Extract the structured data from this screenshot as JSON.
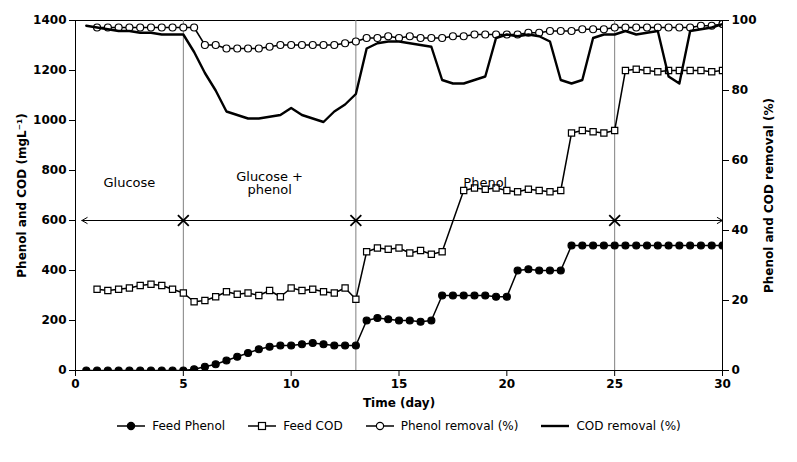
{
  "chart_data": {
    "type": "line",
    "xlabel": "Time (day)",
    "ylabel": "Phenol and COD (mgL⁻¹)",
    "y2label": "Phenol and COD removal (%)",
    "xlim": [
      0,
      30
    ],
    "ylim": [
      0,
      1400
    ],
    "y2lim": [
      0,
      100
    ],
    "xticks": [
      0,
      5,
      10,
      15,
      20,
      25,
      30
    ],
    "yticks": [
      0,
      200,
      400,
      600,
      800,
      1000,
      1200,
      1400
    ],
    "y2ticks": [
      0,
      20,
      40,
      60,
      80,
      100
    ],
    "grid": false,
    "legend": "bottom",
    "vlines": [
      5,
      13,
      25
    ],
    "arrow": {
      "y": 600,
      "from": 0.3,
      "to": 30
    },
    "annotations": [
      {
        "text": "Glucose",
        "x": 2.5,
        "y": 750
      },
      {
        "text": "Glucose +\nphenol",
        "x": 9,
        "y": 750
      },
      {
        "text": "Phenol",
        "x": 19,
        "y": 750
      }
    ],
    "series": [
      {
        "name": "Feed Phenol",
        "color": "#000000",
        "marker": "circle_filled",
        "x": [
          0.5,
          1,
          1.5,
          2,
          2.5,
          3,
          3.5,
          4,
          4.5,
          5,
          5.5,
          6,
          6.5,
          7,
          7.5,
          8,
          8.5,
          9,
          9.5,
          10,
          10.5,
          11,
          11.5,
          12,
          12.5,
          13,
          13.5,
          14,
          14.5,
          15,
          15.5,
          16,
          16.5,
          17,
          17.5,
          18,
          18.5,
          19,
          19.5,
          20,
          20.5,
          21,
          21.5,
          22,
          22.5,
          23,
          23.5,
          24,
          24.5,
          25,
          25.5,
          26,
          26.5,
          27,
          27.5,
          28,
          28.5,
          29,
          29.5,
          30
        ],
        "values": [
          0,
          0,
          0,
          0,
          0,
          0,
          0,
          0,
          0,
          0,
          5,
          15,
          25,
          40,
          55,
          70,
          85,
          95,
          100,
          100,
          105,
          110,
          105,
          100,
          100,
          100,
          200,
          210,
          205,
          200,
          200,
          195,
          200,
          300,
          300,
          300,
          300,
          300,
          295,
          295,
          400,
          405,
          400,
          400,
          400,
          500,
          500,
          500,
          500,
          500,
          500,
          500,
          500,
          500,
          500,
          500,
          500,
          500,
          500,
          500
        ]
      },
      {
        "name": "Feed COD",
        "color": "#000000",
        "marker": "square_open",
        "x": [
          1,
          1.5,
          2,
          2.5,
          3,
          3.5,
          4,
          4.5,
          5,
          5.5,
          6,
          6.5,
          7,
          7.5,
          8,
          8.5,
          9,
          9.5,
          10,
          10.5,
          11,
          11.5,
          12,
          12.5,
          13,
          13.5,
          14,
          14.5,
          15,
          15.5,
          16,
          16.5,
          17,
          18,
          18.5,
          19,
          19.5,
          20,
          20.5,
          21,
          21.5,
          22,
          22.5,
          23,
          23.5,
          24,
          24.5,
          25,
          25.5,
          26,
          26.5,
          27,
          27.5,
          28,
          28.5,
          29,
          29.5,
          30
        ],
        "values": [
          325,
          320,
          325,
          330,
          340,
          345,
          340,
          325,
          310,
          275,
          280,
          295,
          315,
          305,
          310,
          300,
          320,
          295,
          330,
          320,
          325,
          315,
          310,
          330,
          285,
          475,
          490,
          485,
          490,
          470,
          480,
          465,
          475,
          720,
          730,
          725,
          730,
          720,
          715,
          725,
          720,
          715,
          720,
          950,
          960,
          955,
          950,
          960,
          1200,
          1205,
          1200,
          1195,
          1200,
          1200,
          1200,
          1200,
          1195,
          1200
        ]
      },
      {
        "name": "Phenol removal (%)",
        "color": "#000000",
        "marker": "circle_open",
        "axis": "y2",
        "x": [
          1,
          1.5,
          2,
          2.5,
          3,
          3.5,
          4,
          4.5,
          5,
          5.5,
          6,
          6.5,
          7,
          7.5,
          8,
          8.5,
          9,
          9.5,
          10,
          10.5,
          11,
          11.5,
          12,
          12.5,
          13,
          13.5,
          14,
          14.5,
          15,
          15.5,
          16,
          16.5,
          17,
          17.5,
          18,
          18.5,
          19,
          19.5,
          20,
          20.5,
          21,
          21.5,
          22,
          22.5,
          23,
          23.5,
          24,
          24.5,
          25,
          25.5,
          26,
          26.5,
          27,
          27.5,
          28,
          28.5,
          29,
          29.5,
          30
        ],
        "values": [
          98,
          98,
          98,
          98,
          98,
          98,
          98,
          98,
          98,
          98,
          93,
          93,
          92,
          92,
          92,
          92,
          92.5,
          93,
          93,
          93,
          93,
          93,
          93,
          93.5,
          94,
          95,
          95,
          95.5,
          95,
          95.5,
          95,
          95,
          95,
          95.5,
          95.5,
          96,
          96,
          96,
          96,
          96,
          96.5,
          96.5,
          97,
          97,
          97,
          97.5,
          97.5,
          97.5,
          98,
          98,
          98,
          98,
          98,
          98,
          98,
          98,
          98.5,
          98.5,
          99
        ]
      },
      {
        "name": "COD removal (%)",
        "color": "#000000",
        "marker": "none",
        "axis": "y2",
        "x": [
          0.5,
          1,
          1.5,
          2,
          2.5,
          3,
          3.5,
          4,
          4.5,
          5,
          5.5,
          6,
          6.5,
          7,
          7.5,
          8,
          8.5,
          9,
          9.5,
          10,
          10.5,
          11,
          11.5,
          12,
          12.5,
          13,
          13.5,
          14,
          14.5,
          15,
          15.5,
          16,
          16.5,
          17,
          17.5,
          18,
          18.5,
          19,
          19.5,
          20,
          20.5,
          21,
          21.5,
          22,
          22.5,
          23,
          23.5,
          24,
          24.5,
          25,
          25.5,
          26,
          26.5,
          27,
          27.5,
          28,
          28.5,
          29,
          29.5,
          30
        ],
        "values": [
          98.5,
          98,
          97.5,
          97,
          97,
          96.5,
          96.5,
          96,
          96,
          96,
          91,
          85,
          80,
          74,
          73,
          72,
          72,
          72.5,
          73,
          75,
          73,
          72,
          71,
          74,
          76,
          79,
          92,
          93.5,
          94,
          94,
          93.5,
          93,
          92.5,
          83,
          82,
          82,
          83,
          84,
          95,
          96,
          95.5,
          96,
          95.5,
          94,
          83,
          82,
          83,
          95,
          96,
          96,
          97,
          96,
          96.5,
          97,
          84,
          82,
          97,
          97.5,
          98,
          99
        ]
      }
    ]
  }
}
